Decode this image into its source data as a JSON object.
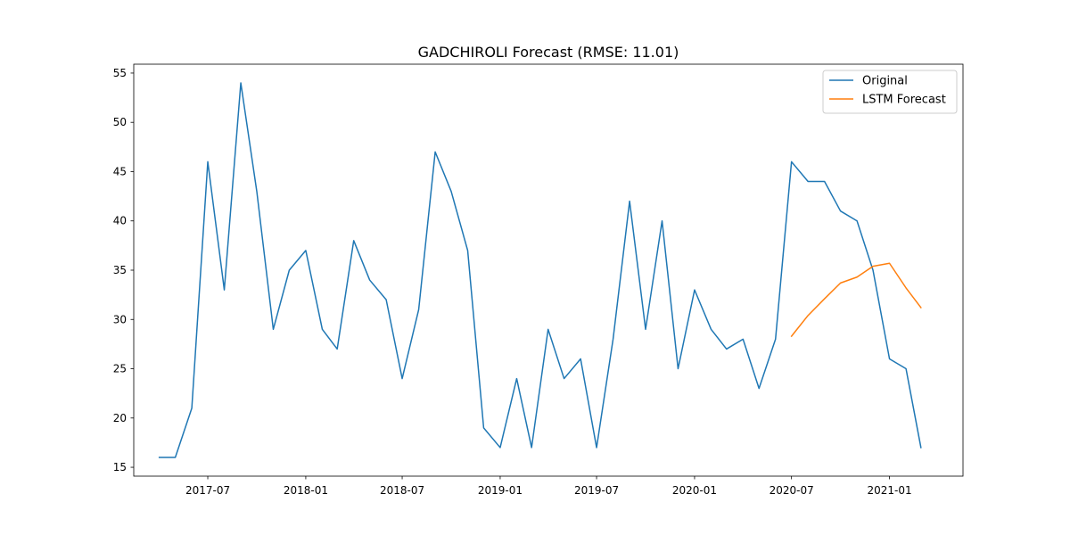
{
  "chart_data": {
    "type": "line",
    "title": "GADCHIROLI Forecast (RMSE: 11.01)",
    "xlabel": "",
    "ylabel": "",
    "xlim": [
      "2017-02-12",
      "2021-05-19"
    ],
    "ylim": [
      14.1,
      55.9
    ],
    "x_ticks": [
      "2017-07",
      "2018-01",
      "2018-07",
      "2019-01",
      "2019-07",
      "2020-01",
      "2020-07",
      "2021-01"
    ],
    "y_ticks": [
      15,
      20,
      25,
      30,
      35,
      40,
      45,
      50,
      55
    ],
    "grid": false,
    "legend_position": "top-right",
    "series": [
      {
        "name": "Original",
        "color": "#1f77b4",
        "x": [
          "2017-04",
          "2017-05",
          "2017-06",
          "2017-07",
          "2017-08",
          "2017-09",
          "2017-10",
          "2017-11",
          "2017-12",
          "2018-01",
          "2018-02",
          "2018-03",
          "2018-04",
          "2018-05",
          "2018-06",
          "2018-07",
          "2018-08",
          "2018-09",
          "2018-10",
          "2018-11",
          "2018-12",
          "2019-01",
          "2019-02",
          "2019-03",
          "2019-04",
          "2019-05",
          "2019-06",
          "2019-07",
          "2019-08",
          "2019-09",
          "2019-10",
          "2019-11",
          "2019-12",
          "2020-01",
          "2020-02",
          "2020-03",
          "2020-04",
          "2020-05",
          "2020-06",
          "2020-07",
          "2020-08",
          "2020-09",
          "2020-10",
          "2020-11",
          "2020-12",
          "2021-01",
          "2021-02",
          "2021-03"
        ],
        "values": [
          16,
          16,
          21,
          46,
          33,
          54,
          43,
          29,
          35,
          37,
          29,
          27,
          38,
          34,
          32,
          24,
          31,
          47,
          43,
          37,
          19,
          17,
          24,
          17,
          29,
          24,
          26,
          17,
          28,
          42,
          29,
          40,
          25,
          33,
          29,
          27,
          28,
          23,
          28,
          46,
          44,
          44,
          41,
          40,
          35,
          26,
          25,
          17
        ]
      },
      {
        "name": "LSTM Forecast",
        "color": "#ff7f0e",
        "x": [
          "2020-07",
          "2020-08",
          "2020-09",
          "2020-10",
          "2020-11",
          "2020-12",
          "2021-01",
          "2021-02",
          "2021-03"
        ],
        "values": [
          28.3,
          30.4,
          32.1,
          33.7,
          34.3,
          35.4,
          35.7,
          33.2,
          31.2
        ]
      }
    ]
  }
}
